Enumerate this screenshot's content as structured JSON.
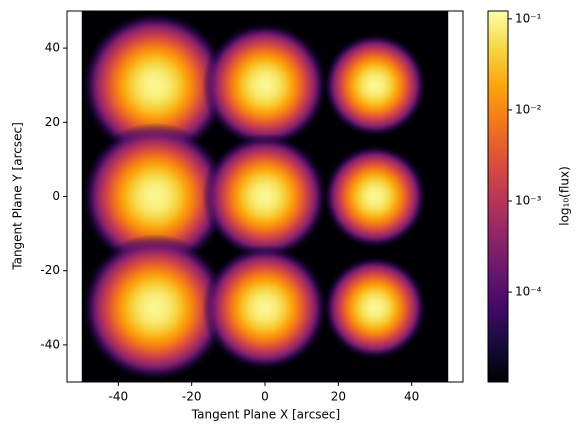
{
  "chart_data": {
    "type": "heatmap",
    "x_label": "Tangent Plane X [arcsec]",
    "y_label": "Tangent Plane Y [arcsec]",
    "colorbar_label": "log₁₀(flux)",
    "colormap": "inferno",
    "color_scale": "log",
    "x": [
      -30,
      0,
      30,
      -30,
      0,
      30,
      -30,
      0,
      30
    ],
    "y": [
      30,
      30,
      30,
      0,
      0,
      0,
      -30,
      -30,
      -30
    ],
    "values": [
      0.1,
      0.1,
      0.1,
      0.1,
      0.1,
      0.1,
      0.1,
      0.1,
      0.1
    ],
    "sizes": [
      4.7,
      4,
      3.3,
      4.7,
      4,
      3.3,
      4.7,
      4,
      3.3
    ],
    "extent": [
      -50,
      50,
      -50,
      50
    ],
    "xlim": [
      -54,
      54
    ],
    "ylim": [
      -50,
      50
    ],
    "xticks": [
      -40,
      -20,
      0,
      20,
      40
    ],
    "yticks": [
      -40,
      -20,
      0,
      20,
      40
    ],
    "clim": [
      1.03e-05,
      0.122
    ],
    "cticks": [
      {
        "value": 0.0001,
        "label": "10⁻⁴"
      },
      {
        "value": 0.001,
        "label": "10⁻³"
      },
      {
        "value": 0.01,
        "label": "10⁻²"
      },
      {
        "value": 0.1,
        "label": "10⁻¹"
      }
    ]
  }
}
